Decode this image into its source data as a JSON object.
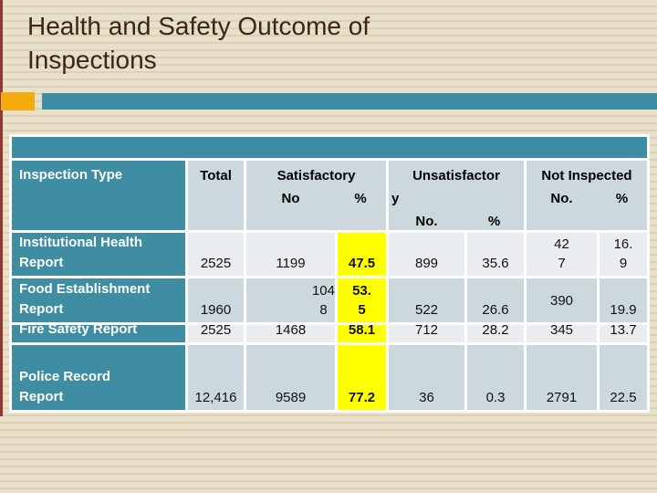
{
  "slide": {
    "title": "Health and Safety Outcome of\nInspections"
  },
  "colors": {
    "accent_teal": "#3e8da3",
    "accent_orange": "#f3ab0e",
    "left_strip_maroon": "#8c3a33",
    "highlight_yellow": "#ffff00",
    "row_light": "#e9edf0",
    "row_mid": "#ccd8dd",
    "title_brown": "#3b2519",
    "background_beige": "#e8dfc8"
  },
  "table": {
    "header": {
      "inspection_type": "Inspection Type",
      "total": "Total",
      "groups": [
        {
          "line1": "Satisfactory",
          "line2": "",
          "no": "No",
          "pct": "%"
        },
        {
          "line1": "Unsatisfactor",
          "line2": "y",
          "no": "No.",
          "pct": "%"
        },
        {
          "line1": "Not Inspected",
          "line2": "",
          "no": "No.",
          "pct": "%"
        }
      ]
    },
    "rows": [
      {
        "label": "Institutional Health\nReport",
        "total": "2525",
        "sat_no": "1199",
        "sat_pct": "47.5",
        "unsat_no": "899",
        "unsat_pct": "35.6",
        "ni_no": "42\n7",
        "ni_pct": "16.\n9"
      },
      {
        "label": "Food Establishment\nReport",
        "total": "1960",
        "sat_no": "104\n8",
        "sat_pct": "53.\n5",
        "unsat_no": "522",
        "unsat_pct": "26.6",
        "ni_no": "390",
        "ni_pct": "19.9"
      },
      {
        "label": "Fire Safety Report",
        "total": "2525",
        "sat_no": "1468",
        "sat_pct": "58.1",
        "unsat_no": "712",
        "unsat_pct": "28.2",
        "ni_no": "345",
        "ni_pct": "13.7"
      },
      {
        "label": "Police Record\nReport",
        "total": "12,416",
        "sat_no": "9589",
        "sat_pct": "77.2",
        "unsat_no": "36",
        "unsat_pct": "0.3",
        "ni_no": "2791",
        "ni_pct": "22.5"
      }
    ]
  }
}
